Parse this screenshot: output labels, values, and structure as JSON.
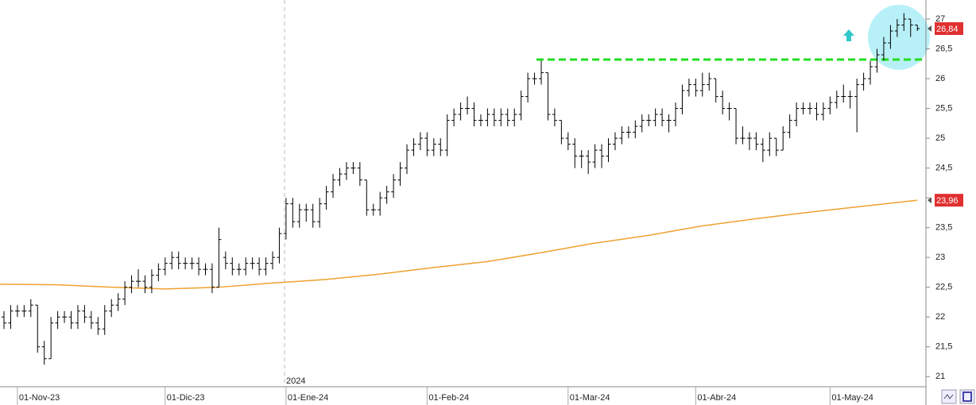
{
  "chart_data": {
    "type": "ohlc",
    "categories": [
      null,
      null,
      "01-Nov-23",
      null,
      null,
      null,
      null,
      null,
      null,
      null,
      null,
      null,
      null,
      null,
      null,
      null,
      null,
      null,
      null,
      null,
      null,
      null,
      null,
      null,
      "01-Dic-23",
      null,
      null,
      null,
      null,
      null,
      null,
      null,
      null,
      null,
      null,
      null,
      null,
      null,
      null,
      null,
      null,
      null,
      "01-Ene-24",
      null,
      null,
      null,
      null,
      null,
      null,
      null,
      null,
      null,
      null,
      null,
      null,
      null,
      null,
      null,
      null,
      null,
      null,
      null,
      null,
      "01-Feb-24",
      null,
      null,
      null,
      null,
      null,
      null,
      null,
      null,
      null,
      null,
      null,
      null,
      null,
      null,
      null,
      null,
      null,
      null,
      null,
      null,
      "01-Mar-24",
      null,
      null,
      null,
      null,
      null,
      null,
      null,
      null,
      null,
      null,
      null,
      null,
      null,
      null,
      null,
      null,
      null,
      null,
      "01-Abr-24",
      null,
      null,
      null,
      null,
      null,
      null,
      null,
      null,
      null,
      null,
      null,
      null,
      null,
      null,
      null,
      null,
      null,
      null,
      null,
      "01-May-24",
      null,
      null,
      null,
      null,
      null,
      null,
      null,
      null,
      null,
      null,
      null,
      null,
      null
    ],
    "open": [
      22.0,
      21.9,
      22.1,
      22.1,
      22.1,
      22.2,
      21.5,
      21.3,
      21.9,
      22.0,
      22.0,
      21.9,
      22.1,
      22.0,
      21.9,
      21.8,
      22.1,
      22.2,
      22.3,
      22.5,
      22.6,
      22.6,
      22.5,
      22.7,
      22.8,
      22.9,
      23.0,
      22.9,
      22.9,
      22.9,
      22.8,
      22.8,
      22.5,
      23.0,
      22.9,
      22.8,
      22.8,
      22.9,
      22.9,
      22.8,
      22.9,
      23.0,
      23.4,
      23.9,
      23.6,
      23.8,
      23.8,
      23.6,
      23.9,
      24.1,
      24.3,
      24.4,
      24.5,
      24.5,
      24.3,
      23.8,
      23.8,
      24.0,
      24.1,
      24.3,
      24.5,
      24.8,
      24.9,
      25.0,
      24.8,
      24.9,
      24.8,
      25.3,
      25.4,
      25.5,
      25.5,
      25.3,
      25.3,
      25.4,
      25.3,
      25.4,
      25.3,
      25.4,
      25.7,
      26.0,
      26.0,
      26.1,
      25.4,
      25.3,
      25.0,
      24.9,
      24.7,
      24.7,
      24.6,
      24.8,
      24.7,
      24.9,
      25.0,
      25.1,
      25.1,
      25.2,
      25.3,
      25.3,
      25.4,
      25.3,
      25.3,
      25.5,
      25.8,
      25.9,
      25.8,
      25.9,
      26.0,
      25.7,
      25.5,
      25.5,
      25.0,
      25.0,
      25.0,
      24.9,
      24.8,
      25.0,
      24.8,
      25.1,
      25.3,
      25.5,
      25.5,
      25.5,
      25.4,
      25.5,
      25.6,
      25.7,
      25.7,
      25.7,
      25.9,
      26.0,
      26.2,
      26.4,
      26.6,
      26.8,
      26.9,
      27.0,
      26.9
    ],
    "high": [
      22.1,
      22.2,
      22.2,
      22.2,
      22.3,
      22.2,
      21.6,
      22.0,
      22.1,
      22.1,
      22.1,
      22.2,
      22.2,
      22.1,
      22.0,
      22.2,
      22.3,
      22.4,
      22.6,
      22.7,
      22.8,
      22.7,
      22.8,
      22.9,
      23.0,
      23.1,
      23.1,
      23.0,
      23.0,
      23.0,
      22.9,
      22.9,
      23.5,
      23.1,
      23.0,
      22.9,
      23.0,
      23.0,
      23.0,
      23.0,
      23.1,
      23.5,
      24.0,
      24.0,
      23.9,
      23.9,
      23.9,
      24.0,
      24.2,
      24.4,
      24.5,
      24.6,
      24.6,
      24.6,
      24.3,
      23.9,
      24.1,
      24.2,
      24.4,
      24.6,
      24.9,
      25.0,
      25.1,
      25.1,
      25.0,
      25.0,
      25.4,
      25.5,
      25.6,
      25.7,
      25.6,
      25.4,
      25.5,
      25.5,
      25.5,
      25.5,
      25.5,
      25.8,
      26.1,
      26.1,
      26.3,
      26.1,
      25.5,
      25.3,
      25.1,
      25.0,
      24.8,
      24.8,
      24.9,
      24.9,
      25.0,
      25.1,
      25.2,
      25.2,
      25.3,
      25.4,
      25.4,
      25.5,
      25.5,
      25.4,
      25.6,
      25.9,
      26.0,
      26.0,
      26.1,
      26.1,
      26.0,
      25.8,
      25.6,
      25.5,
      25.2,
      25.1,
      25.1,
      25.0,
      25.1,
      25.0,
      25.2,
      25.4,
      25.6,
      25.6,
      25.6,
      25.6,
      25.6,
      25.7,
      25.8,
      25.9,
      25.8,
      26.0,
      26.1,
      26.3,
      26.5,
      26.7,
      26.9,
      27.0,
      27.1,
      27.0,
      26.9
    ],
    "low": [
      21.8,
      21.8,
      22.0,
      22.0,
      22.0,
      21.4,
      21.2,
      21.3,
      21.8,
      21.9,
      21.8,
      21.8,
      21.9,
      21.8,
      21.7,
      21.7,
      22.0,
      22.1,
      22.2,
      22.4,
      22.5,
      22.4,
      22.4,
      22.6,
      22.7,
      22.8,
      22.8,
      22.8,
      22.8,
      22.7,
      22.7,
      22.4,
      22.5,
      22.8,
      22.7,
      22.7,
      22.7,
      22.8,
      22.7,
      22.7,
      22.8,
      22.9,
      23.3,
      23.5,
      23.5,
      23.6,
      23.5,
      23.5,
      23.8,
      24.0,
      24.2,
      24.3,
      24.4,
      24.2,
      23.7,
      23.7,
      23.7,
      23.9,
      24.0,
      24.2,
      24.4,
      24.7,
      24.8,
      24.7,
      24.7,
      24.7,
      24.7,
      25.2,
      25.3,
      25.4,
      25.2,
      25.2,
      25.2,
      25.2,
      25.2,
      25.2,
      25.2,
      25.3,
      25.6,
      25.9,
      25.9,
      25.3,
      25.2,
      24.9,
      24.8,
      24.5,
      24.5,
      24.4,
      24.5,
      24.5,
      24.6,
      24.8,
      24.9,
      25.0,
      25.0,
      25.1,
      25.2,
      25.2,
      25.2,
      25.1,
      25.2,
      25.4,
      25.7,
      25.7,
      25.7,
      25.8,
      25.6,
      25.4,
      25.3,
      24.9,
      24.9,
      24.8,
      24.8,
      24.6,
      24.7,
      24.7,
      24.8,
      25.0,
      25.2,
      25.4,
      25.4,
      25.3,
      25.3,
      25.4,
      25.5,
      25.6,
      25.5,
      25.1,
      25.8,
      25.9,
      26.1,
      26.3,
      26.5,
      26.7,
      26.8,
      26.7,
      26.8
    ],
    "close": [
      21.9,
      22.1,
      22.1,
      22.1,
      22.2,
      21.5,
      21.3,
      21.9,
      22.0,
      22.0,
      21.9,
      22.1,
      22.0,
      21.9,
      21.8,
      22.1,
      22.2,
      22.3,
      22.5,
      22.6,
      22.6,
      22.5,
      22.7,
      22.8,
      22.9,
      23.0,
      22.9,
      22.9,
      22.9,
      22.8,
      22.8,
      22.5,
      23.3,
      22.9,
      22.8,
      22.8,
      22.9,
      22.9,
      22.8,
      22.9,
      23.0,
      23.4,
      23.9,
      23.6,
      23.8,
      23.8,
      23.6,
      23.9,
      24.1,
      24.3,
      24.4,
      24.5,
      24.5,
      24.3,
      23.8,
      23.8,
      24.0,
      24.1,
      24.3,
      24.5,
      24.8,
      24.9,
      25.0,
      24.8,
      24.9,
      24.8,
      25.3,
      25.4,
      25.5,
      25.5,
      25.3,
      25.3,
      25.4,
      25.3,
      25.4,
      25.3,
      25.4,
      25.7,
      26.0,
      26.0,
      26.1,
      25.4,
      25.3,
      25.0,
      24.9,
      24.7,
      24.7,
      24.6,
      24.8,
      24.7,
      24.9,
      25.0,
      25.1,
      25.1,
      25.2,
      25.3,
      25.3,
      25.4,
      25.3,
      25.3,
      25.5,
      25.8,
      25.9,
      25.8,
      25.9,
      26.0,
      25.7,
      25.5,
      25.5,
      25.0,
      25.0,
      25.0,
      24.9,
      24.8,
      25.0,
      24.8,
      25.1,
      25.3,
      25.5,
      25.5,
      25.5,
      25.4,
      25.5,
      25.6,
      25.7,
      25.7,
      25.7,
      25.9,
      26.0,
      26.2,
      26.4,
      26.6,
      26.8,
      26.9,
      27.0,
      26.9,
      26.84
    ],
    "color": "#000000",
    "ylim": [
      20.83,
      27.32
    ],
    "yticks": [
      21,
      {
        "value": 21.5,
        "label": "21,5"
      },
      22,
      {
        "value": 22.5,
        "label": "22,5"
      },
      23,
      {
        "value": 23.5,
        "label": "23,5"
      },
      24,
      {
        "value": 24.5,
        "label": "24,5"
      },
      25,
      {
        "value": 25.5,
        "label": "25,5"
      },
      26,
      {
        "value": 26.5,
        "label": "26,5"
      },
      27
    ],
    "moving_average": {
      "color": "#f0a030",
      "x": [
        0,
        8,
        16,
        24,
        32,
        40,
        48,
        56,
        64,
        72,
        80,
        88,
        96,
        104,
        112,
        120,
        128,
        136
      ],
      "values": [
        22.55,
        22.54,
        22.5,
        22.47,
        22.5,
        22.57,
        22.63,
        22.72,
        22.83,
        22.93,
        23.08,
        23.24,
        23.37,
        23.53,
        23.65,
        23.76,
        23.86,
        23.96
      ]
    },
    "resistance": {
      "value": 26.32,
      "color": "#22dd22"
    },
    "price_tags": [
      {
        "value": 26.84,
        "label": "26,84"
      },
      {
        "value": 23.96,
        "label": "23,96"
      }
    ],
    "tag_color": "#e03030",
    "year_label": "2024"
  }
}
